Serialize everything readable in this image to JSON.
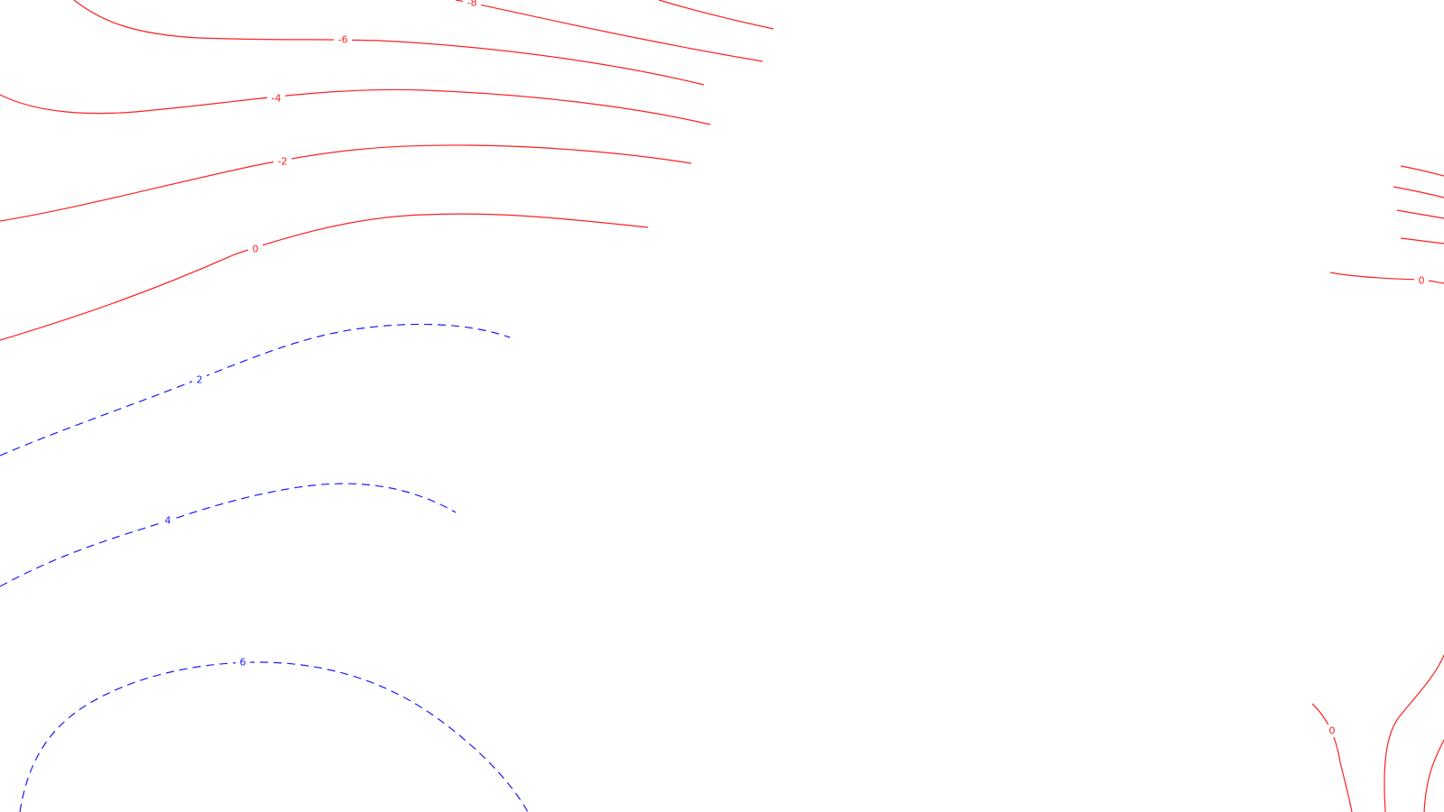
{
  "colors": {
    "background": "#ffffff",
    "negative_and_zero": "#ff2020",
    "positive": "#1a1aff"
  },
  "legend": "none",
  "contours": [
    {
      "id": "neg8-top-left",
      "level": -8,
      "style": "solid",
      "label": "-8"
    },
    {
      "id": "neg8-top-right",
      "level": -8,
      "style": "solid",
      "label": null
    },
    {
      "id": "neg6-left",
      "level": -6,
      "style": "solid",
      "label": "-6"
    },
    {
      "id": "neg4-left",
      "level": -4,
      "style": "solid",
      "label": "-4"
    },
    {
      "id": "neg2-left",
      "level": -2,
      "style": "solid",
      "label": "-2"
    },
    {
      "id": "zero-left",
      "level": 0,
      "style": "solid",
      "label": "0"
    },
    {
      "id": "pos2-left",
      "level": 2,
      "style": "dashed",
      "label": "2"
    },
    {
      "id": "pos4-left",
      "level": 4,
      "style": "dashed",
      "label": "4"
    },
    {
      "id": "pos6-left",
      "level": 6,
      "style": "dashed",
      "label": "6"
    },
    {
      "id": "right-a",
      "level": -8,
      "style": "solid",
      "label": null
    },
    {
      "id": "right-b",
      "level": -6,
      "style": "solid",
      "label": null
    },
    {
      "id": "right-c",
      "level": -4,
      "style": "solid",
      "label": null
    },
    {
      "id": "right-d",
      "level": -2,
      "style": "solid",
      "label": null
    },
    {
      "id": "zero-right",
      "level": 0,
      "style": "solid",
      "label": "0"
    },
    {
      "id": "zero-bottom-right",
      "level": 0,
      "style": "solid",
      "label": "0"
    },
    {
      "id": "right-bottom-2",
      "level": 0,
      "style": "solid",
      "label": null
    },
    {
      "id": "right-bottom-3",
      "level": 0,
      "style": "solid",
      "label": null
    }
  ]
}
